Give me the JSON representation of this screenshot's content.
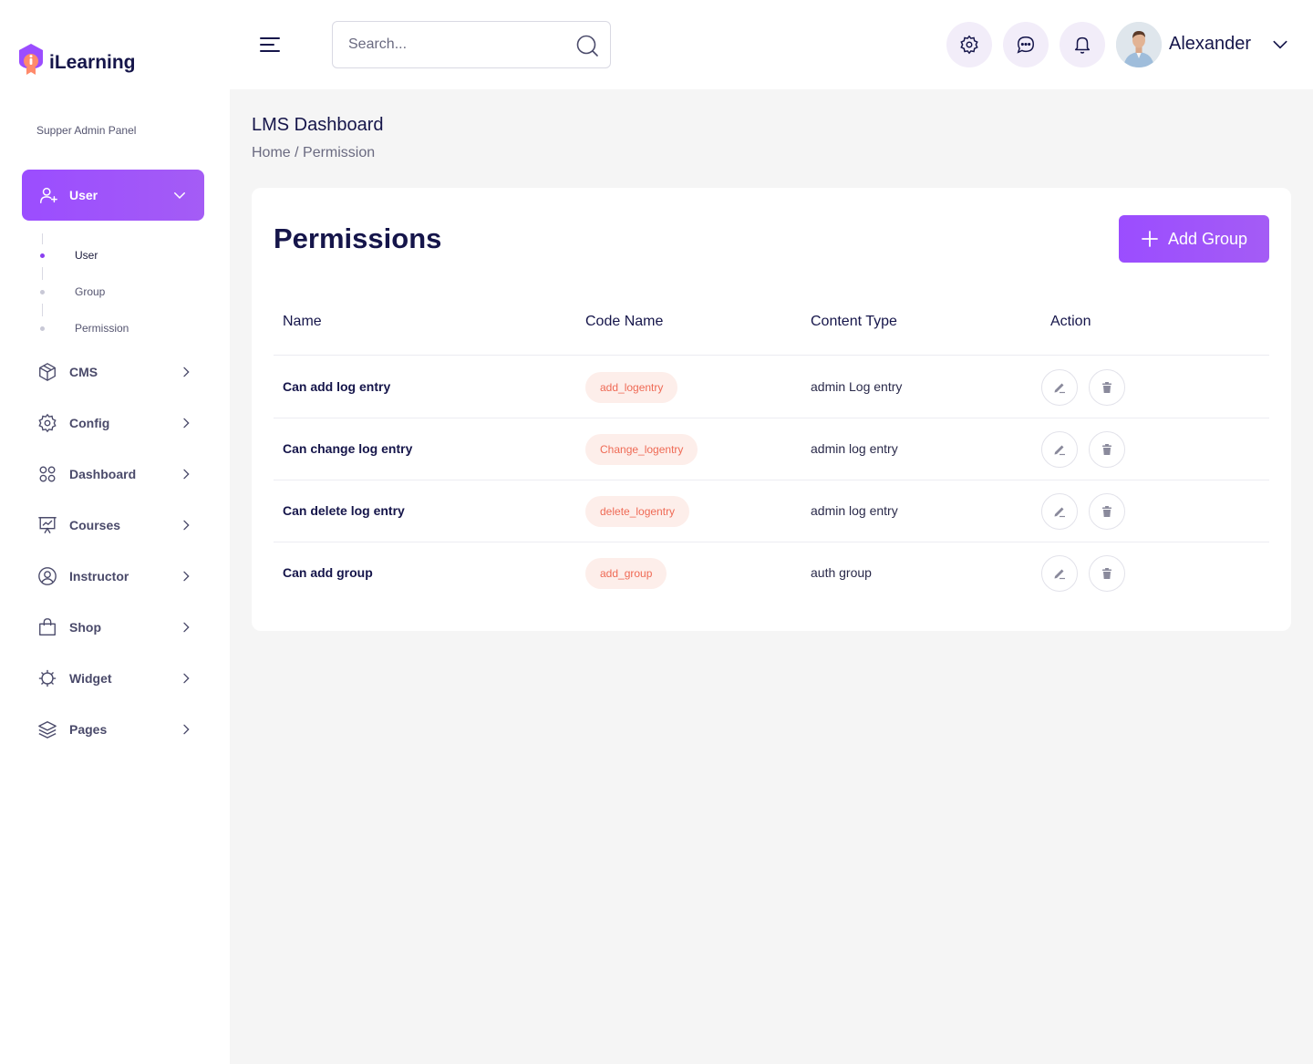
{
  "sidebar": {
    "logo_text": "iLearning",
    "panel_label": "Supper Admin Panel",
    "active_section": {
      "label": "User",
      "icon": "user-plus-icon"
    },
    "sub_items": [
      {
        "label": "User",
        "active": true
      },
      {
        "label": "Group",
        "active": false
      },
      {
        "label": "Permission",
        "active": false
      }
    ],
    "items": [
      {
        "label": "CMS",
        "icon": "box-icon"
      },
      {
        "label": "Config",
        "icon": "gear-icon"
      },
      {
        "label": "Dashboard",
        "icon": "grid-icon"
      },
      {
        "label": "Courses",
        "icon": "presentation-icon"
      },
      {
        "label": "Instructor",
        "icon": "user-circle-icon"
      },
      {
        "label": "Shop",
        "icon": "shopping-bag-icon"
      },
      {
        "label": "Widget",
        "icon": "widget-icon"
      },
      {
        "label": "Pages",
        "icon": "layers-icon"
      }
    ]
  },
  "header": {
    "search_placeholder": "Search...",
    "user_name": "Alexander"
  },
  "main": {
    "page_title": "LMS Dashboard",
    "breadcrumb": "Home / Permission",
    "card_title": "Permissions",
    "add_button_label": "Add Group",
    "columns": [
      "Name",
      "Code Name",
      "Content Type",
      "Action"
    ],
    "rows": [
      {
        "name": "Can add log entry",
        "code": "add_logentry",
        "type": "admin Log entry"
      },
      {
        "name": "Can change log entry",
        "code": "Change_logentry",
        "type": "admin log entry"
      },
      {
        "name": "Can delete log entry",
        "code": "delete_logentry",
        "type": "admin log entry"
      },
      {
        "name": "Can add group",
        "code": "add_group",
        "type": "auth group"
      }
    ]
  },
  "colors": {
    "accent": "#9b4dff",
    "code_pill_bg": "#fdeeea",
    "code_pill_text": "#ef6a55",
    "icon_button_bg": "#f2edf9"
  }
}
